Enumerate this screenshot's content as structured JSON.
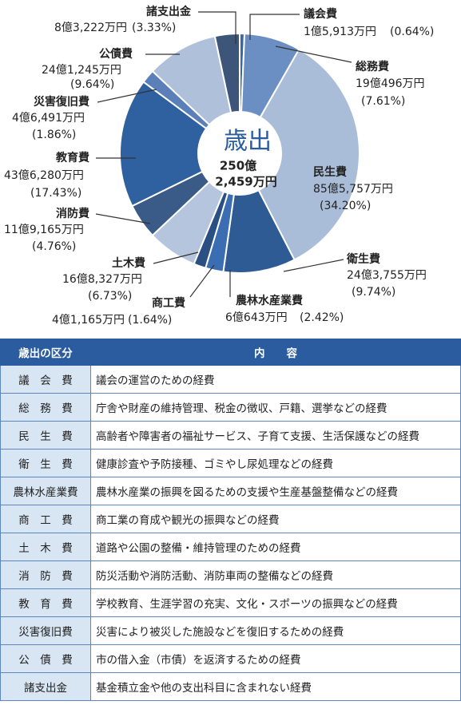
{
  "chart_data": {
    "type": "pie",
    "center_label": [
      "歳出",
      "250億",
      "2,459万円"
    ],
    "categories": [
      "議会費",
      "総務費",
      "民生費",
      "衛生費",
      "農林水産業費",
      "商工費",
      "土木費",
      "消防費",
      "教育費",
      "災害復旧費",
      "公債費",
      "諸支出金"
    ],
    "amounts": [
      "1億5,913万円",
      "19億496万円",
      "85億5,757万円",
      "24億3,755万円",
      "6億643万円",
      "4億1,165万円",
      "16億8,327万円",
      "11億9,165万円",
      "43億6,280万円",
      "4億6,491万円",
      "24億1,245万円",
      "8億3,222万円"
    ],
    "values": [
      0.64,
      7.61,
      34.2,
      9.74,
      2.42,
      1.64,
      6.73,
      4.76,
      17.43,
      1.86,
      9.64,
      3.33
    ],
    "value_labels": [
      "(0.64%)",
      "(7.61%)",
      "(34.20%)",
      "(9.74%)",
      "(2.42%)",
      "(1.64%)",
      "(6.73%)",
      "(4.76%)",
      "(17.43%)",
      "(1.86%)",
      "(9.64%)",
      "(3.33%)"
    ],
    "colors": [
      "#3d68a6",
      "#6b8fc3",
      "#a9bcd8",
      "#2f5b95",
      "#3b6db2",
      "#2a4f82",
      "#b5c5dd",
      "#3a5b88",
      "#2f609f",
      "#5b80b9",
      "#aec0da",
      "#3c5578"
    ]
  },
  "table": {
    "header": [
      "歳出の区分",
      "内　　容"
    ],
    "rows": [
      [
        "議　会　費",
        "議会の運営のための経費"
      ],
      [
        "総　務　費",
        "庁舎や財産の維持管理、税金の徴収、戸籍、選挙などの経費"
      ],
      [
        "民　生　費",
        "高齢者や障害者の福祉サービス、子育て支援、生活保護などの経費"
      ],
      [
        "衛　生　費",
        "健康診査や予防接種、ゴミやし尿処理などの経費"
      ],
      [
        "農林水産業費",
        "農林水産業の振興を図るための支援や生産基盤整備などの経費"
      ],
      [
        "商　工　費",
        "商工業の育成や観光の振興などの経費"
      ],
      [
        "土　木　費",
        "道路や公園の整備・維持管理のための経費"
      ],
      [
        "消　防　費",
        "防災活動や消防活動、消防車両の整備などの経費"
      ],
      [
        "教　育　費",
        "学校教育、生涯学習の充実、文化・スポーツの振興などの経費"
      ],
      [
        "災害復旧費",
        "災害により被災した施設などを復旧するための経費"
      ],
      [
        "公　債　費",
        "市の借入金（市債）を返済するための経費"
      ],
      [
        "諸支出金",
        "基金積立金や他の支出科目に含まれない経費"
      ]
    ]
  }
}
